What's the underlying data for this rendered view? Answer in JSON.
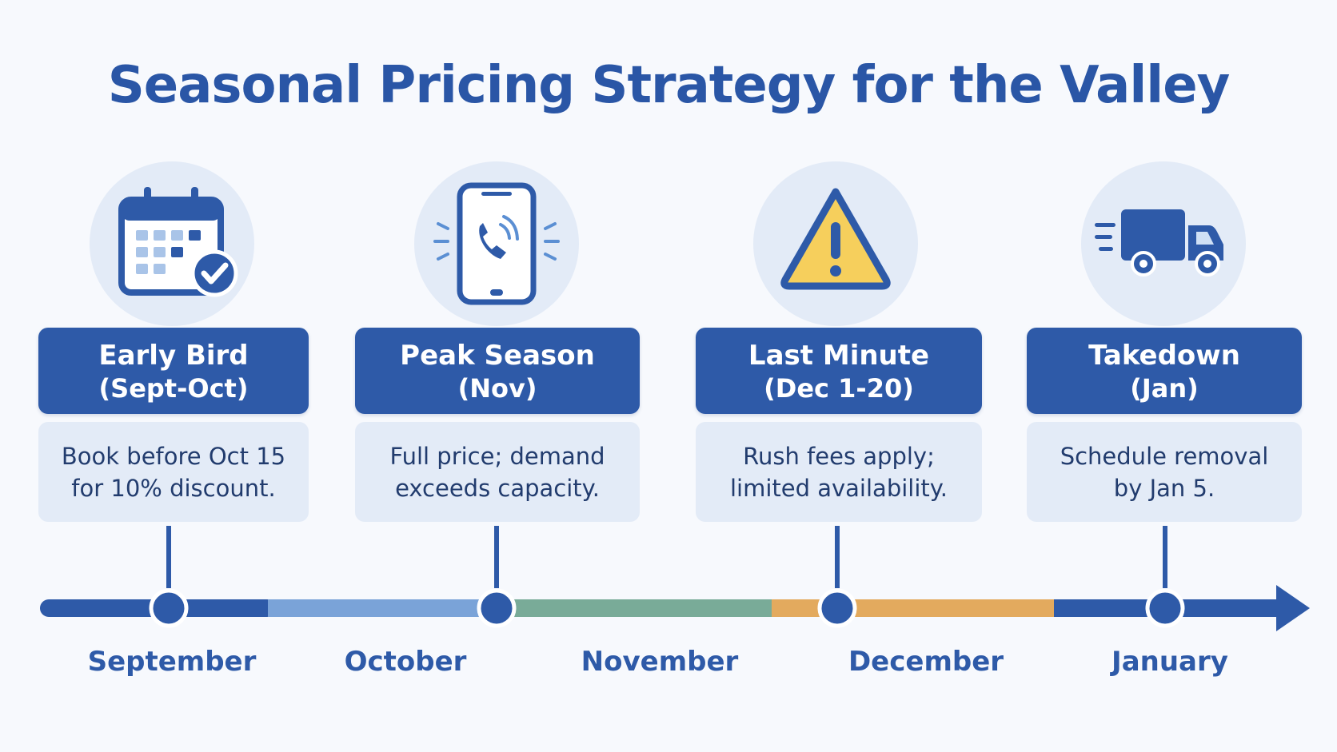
{
  "title": "Seasonal Pricing Strategy for the Valley",
  "phases": [
    {
      "name": "Early Bird",
      "period": "(Sept-Oct)",
      "desc_line1": "Book before Oct 15",
      "desc_line2": "for 10% discount.",
      "icon": "calendar-check-icon"
    },
    {
      "name": "Peak Season",
      "period": "(Nov)",
      "desc_line1": "Full price; demand",
      "desc_line2": "exceeds capacity.",
      "icon": "phone-ringing-icon"
    },
    {
      "name": "Last Minute",
      "period": "(Dec 1-20)",
      "desc_line1": "Rush fees apply;",
      "desc_line2": "limited availability.",
      "icon": "warning-icon"
    },
    {
      "name": "Takedown",
      "period": "(Jan)",
      "desc_line1": "Schedule removal",
      "desc_line2": "by Jan 5.",
      "icon": "truck-icon"
    }
  ],
  "months": [
    "September",
    "October",
    "November",
    "December",
    "January"
  ],
  "colors": {
    "primary": "#2e5aa8",
    "light_panel": "#e3ebf7",
    "segment_blue": "#7aa3d8",
    "segment_green": "#79ab98",
    "segment_orange": "#e3aa5e",
    "warning_yellow": "#f6cf5c"
  }
}
